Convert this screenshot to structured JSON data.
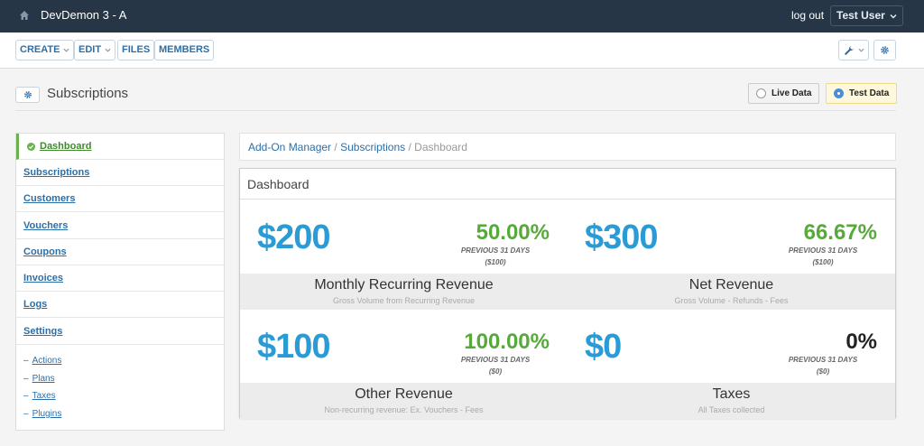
{
  "topbar": {
    "site_name": "DevDemon 3 - A",
    "logout": "log out",
    "user": "Test User"
  },
  "toolbar": {
    "create": "CREATE",
    "edit": "EDIT",
    "files": "FILES",
    "members": "MEMBERS"
  },
  "page": {
    "title": "Subscriptions",
    "live_data": "Live Data",
    "test_data": "Test Data",
    "selected_mode": "Test Data"
  },
  "sidebar": {
    "items": [
      {
        "label": "Dashboard"
      },
      {
        "label": "Subscriptions"
      },
      {
        "label": "Customers"
      },
      {
        "label": "Vouchers"
      },
      {
        "label": "Coupons"
      },
      {
        "label": "Invoices"
      },
      {
        "label": "Logs"
      },
      {
        "label": "Settings"
      }
    ],
    "sub_items": [
      {
        "label": "Actions"
      },
      {
        "label": "Plans"
      },
      {
        "label": "Taxes"
      },
      {
        "label": "Plugins"
      }
    ]
  },
  "breadcrumb": {
    "part1": "Add-On Manager",
    "part2": "Subscriptions",
    "current": "Dashboard",
    "separator": "/"
  },
  "dashboard": {
    "title": "Dashboard",
    "cards": [
      {
        "amount": "$200",
        "percent": "50.00%",
        "period": "PREVIOUS 31 DAYS",
        "previous": "($100)",
        "title": "Monthly Recurring Revenue",
        "subtitle": "Gross Volume from Recurring Revenue"
      },
      {
        "amount": "$300",
        "percent": "66.67%",
        "period": "PREVIOUS 31 DAYS",
        "previous": "($100)",
        "title": "Net Revenue",
        "subtitle": "Gross Volume - Refunds - Fees"
      },
      {
        "amount": "$100",
        "percent": "100.00%",
        "period": "PREVIOUS 31 DAYS",
        "previous": "($0)",
        "title": "Other Revenue",
        "subtitle": "Non-recurring revenue: Ex. Vouchers - Fees"
      },
      {
        "amount": "$0",
        "percent": "0%",
        "period": "PREVIOUS 31 DAYS",
        "previous": "($0)",
        "title": "Taxes",
        "subtitle": "All Taxes collected"
      }
    ]
  },
  "colors": {
    "topbar": "#263646",
    "link": "#2c6fa8",
    "amount": "#2a9bd4",
    "positive": "#58a93b",
    "active_accent": "#6ab04c"
  }
}
